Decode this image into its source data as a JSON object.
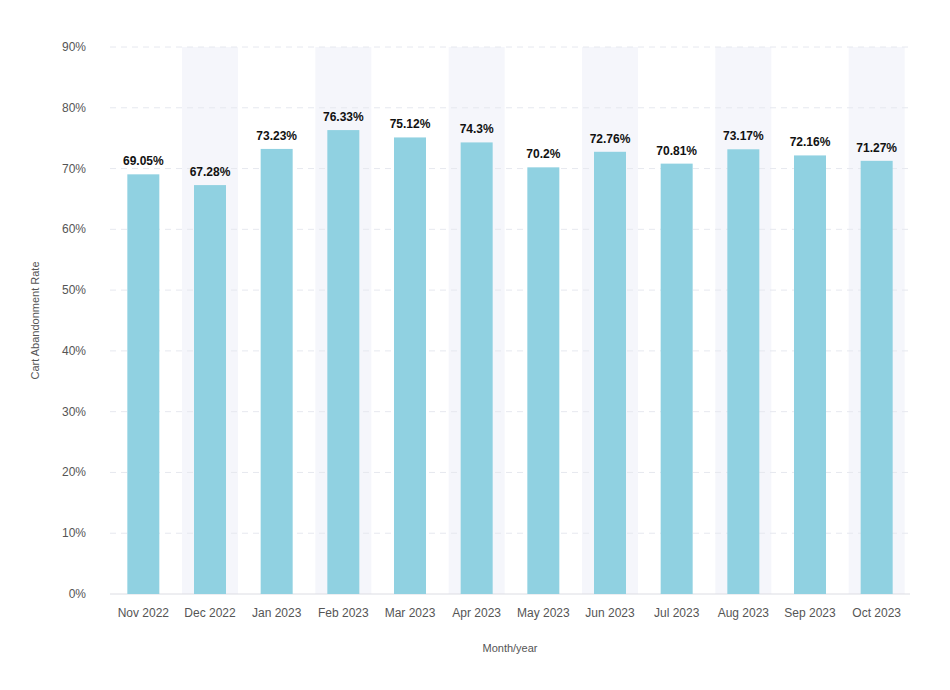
{
  "chart_data": {
    "type": "bar",
    "x_label": "Month/year",
    "y_label": "Cart Abandonment Rate",
    "categories": [
      "Nov 2022",
      "Dec 2022",
      "Jan 2023",
      "Feb 2023",
      "Mar 2023",
      "Apr 2023",
      "May 2023",
      "Jun 2023",
      "Jul 2023",
      "Aug 2023",
      "Sep 2023",
      "Oct 2023"
    ],
    "values": [
      69.05,
      67.28,
      73.23,
      76.33,
      75.12,
      74.3,
      70.2,
      72.76,
      70.81,
      73.17,
      72.16,
      71.27
    ],
    "value_labels": [
      "69.05%",
      "67.28%",
      "73.23%",
      "76.33%",
      "75.12%",
      "74.3%",
      "70.2%",
      "72.76%",
      "70.81%",
      "73.17%",
      "72.16%",
      "71.27%"
    ],
    "color": "#90d1e1",
    "ylim": [
      0,
      90
    ],
    "yticks": [
      {
        "value": 0,
        "label": "0%"
      },
      {
        "value": 10,
        "label": "10%"
      },
      {
        "value": 20,
        "label": "20%"
      },
      {
        "value": 30,
        "label": "30%"
      },
      {
        "value": 40,
        "label": "40%"
      },
      {
        "value": 50,
        "label": "50%"
      },
      {
        "value": 60,
        "label": "60%"
      },
      {
        "value": 70,
        "label": "70%"
      },
      {
        "value": 80,
        "label": "80%"
      },
      {
        "value": 90,
        "label": "90%"
      }
    ],
    "grid": true,
    "data_labels": true
  }
}
